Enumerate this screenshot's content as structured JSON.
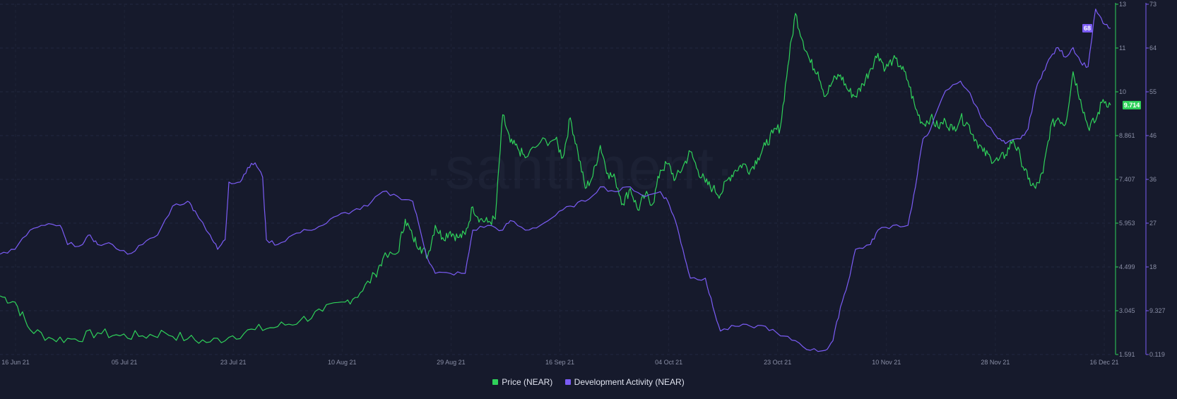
{
  "watermark": "·santiment·",
  "chart_data": {
    "type": "line",
    "x_labels": [
      "16 Jun 21",
      "05 Jul 21",
      "23 Jul 21",
      "10 Aug 21",
      "29 Aug 21",
      "16 Sep 21",
      "04 Oct 21",
      "23 Oct 21",
      "10 Nov 21",
      "28 Nov 21",
      "16 Dec 21"
    ],
    "x_range": [
      "2021-06-16",
      "2021-12-16"
    ],
    "y_left": {
      "ticks": [],
      "range": [
        0,
        1
      ]
    },
    "y_right_price": {
      "ticks": [
        "13",
        "11",
        "10",
        "8.861",
        "7.407",
        "5.953",
        "4.499",
        "3.045",
        "1.591"
      ],
      "range": [
        1.591,
        13
      ]
    },
    "y_right_activity": {
      "ticks": [
        "73",
        "64",
        "55",
        "46",
        "36",
        "27",
        "18",
        "9.327",
        "0.119"
      ],
      "range": [
        0.119,
        73
      ]
    },
    "series": [
      {
        "name": "Price (NEAR)",
        "color": "#2fd25a",
        "axis": "price",
        "last_value": "9.714",
        "points": [
          [
            0,
            3.5
          ],
          [
            2,
            3.3
          ],
          [
            4,
            2.4
          ],
          [
            7,
            2.1
          ],
          [
            10,
            2.1
          ],
          [
            13,
            2.3
          ],
          [
            16,
            2.2
          ],
          [
            19,
            2.2
          ],
          [
            22,
            2.3
          ],
          [
            25,
            2.1
          ],
          [
            28,
            2.0
          ],
          [
            31,
            2.2
          ],
          [
            34,
            2.4
          ],
          [
            37,
            2.5
          ],
          [
            40,
            2.7
          ],
          [
            43,
            3.0
          ],
          [
            46,
            3.3
          ],
          [
            48,
            3.6
          ],
          [
            50,
            4.2
          ],
          [
            51,
            4.7
          ],
          [
            53,
            4.9
          ],
          [
            54,
            6.0
          ],
          [
            55,
            5.4
          ],
          [
            56,
            5.1
          ],
          [
            57,
            4.8
          ],
          [
            58,
            5.8
          ],
          [
            59,
            5.4
          ],
          [
            60,
            5.6
          ],
          [
            61,
            5.4
          ],
          [
            62,
            5.5
          ],
          [
            63,
            6.4
          ],
          [
            64,
            6.0
          ],
          [
            65,
            5.9
          ],
          [
            66,
            6.0
          ],
          [
            67,
            9.4
          ],
          [
            68,
            8.5
          ],
          [
            69,
            8.3
          ],
          [
            70,
            8.0
          ],
          [
            72,
            8.5
          ],
          [
            74,
            8.6
          ],
          [
            75,
            8.0
          ],
          [
            76,
            9.3
          ],
          [
            77,
            8.2
          ],
          [
            78,
            7.0
          ],
          [
            79,
            7.4
          ],
          [
            80,
            8.4
          ],
          [
            81,
            7.5
          ],
          [
            82,
            7.3
          ],
          [
            83,
            6.5
          ],
          [
            84,
            7.0
          ],
          [
            85,
            6.3
          ],
          [
            86,
            6.8
          ],
          [
            87,
            6.5
          ],
          [
            88,
            7.6
          ],
          [
            89,
            7.8
          ],
          [
            90,
            7.3
          ],
          [
            91,
            7.7
          ],
          [
            92,
            8.2
          ],
          [
            93,
            7.6
          ],
          [
            94,
            7.2
          ],
          [
            95,
            7.0
          ],
          [
            96,
            6.8
          ],
          [
            97,
            7.3
          ],
          [
            98,
            7.6
          ],
          [
            99,
            7.8
          ],
          [
            100,
            7.6
          ],
          [
            101,
            8.0
          ],
          [
            102,
            8.4
          ],
          [
            103,
            8.8
          ],
          [
            104,
            9.0
          ],
          [
            105,
            11.0
          ],
          [
            106,
            12.7
          ],
          [
            107,
            11.8
          ],
          [
            108,
            11.1
          ],
          [
            109,
            10.8
          ],
          [
            110,
            10.0
          ],
          [
            111,
            10.5
          ],
          [
            112,
            10.7
          ],
          [
            113,
            10.2
          ],
          [
            114,
            10.0
          ],
          [
            115,
            10.4
          ],
          [
            116,
            10.9
          ],
          [
            117,
            11.4
          ],
          [
            118,
            10.9
          ],
          [
            119,
            11.2
          ],
          [
            120,
            11.0
          ],
          [
            121,
            10.5
          ],
          [
            122,
            9.6
          ],
          [
            123,
            9.1
          ],
          [
            124,
            9.3
          ],
          [
            125,
            9.0
          ],
          [
            126,
            9.2
          ],
          [
            127,
            8.9
          ],
          [
            128,
            9.3
          ],
          [
            129,
            9.1
          ],
          [
            130,
            8.6
          ],
          [
            131,
            8.2
          ],
          [
            132,
            8.0
          ],
          [
            133,
            7.9
          ],
          [
            134,
            8.1
          ],
          [
            135,
            8.6
          ],
          [
            136,
            8.0
          ],
          [
            137,
            7.3
          ],
          [
            138,
            7.0
          ],
          [
            139,
            7.5
          ],
          [
            140,
            9.0
          ],
          [
            141,
            9.3
          ],
          [
            142,
            9.1
          ],
          [
            143,
            10.8
          ],
          [
            144,
            9.9
          ],
          [
            145,
            9.0
          ],
          [
            146,
            9.2
          ],
          [
            147,
            9.9
          ],
          [
            148,
            9.714
          ]
        ]
      },
      {
        "name": "Development Activity (NEAR)",
        "color": "#7b5cf5",
        "axis": "activity",
        "last_value": "68",
        "points": [
          [
            0,
            21
          ],
          [
            2,
            22
          ],
          [
            4,
            26
          ],
          [
            6,
            27
          ],
          [
            8,
            27
          ],
          [
            9,
            23
          ],
          [
            11,
            23
          ],
          [
            12,
            25
          ],
          [
            13,
            23
          ],
          [
            15,
            23
          ],
          [
            17,
            21
          ],
          [
            19,
            23
          ],
          [
            21,
            25
          ],
          [
            23,
            31
          ],
          [
            25,
            32
          ],
          [
            26,
            30
          ],
          [
            28,
            25
          ],
          [
            29,
            22
          ],
          [
            30,
            24
          ],
          [
            30.5,
            36
          ],
          [
            32,
            36
          ],
          [
            33,
            39
          ],
          [
            34,
            40
          ],
          [
            35,
            37
          ],
          [
            35.5,
            24
          ],
          [
            37,
            23
          ],
          [
            39,
            25
          ],
          [
            41,
            26
          ],
          [
            43,
            27
          ],
          [
            45,
            29
          ],
          [
            47,
            30
          ],
          [
            49,
            31
          ],
          [
            51,
            34
          ],
          [
            53,
            33
          ],
          [
            55,
            32
          ],
          [
            56,
            26
          ],
          [
            57,
            20
          ],
          [
            58,
            17
          ],
          [
            60,
            17
          ],
          [
            62,
            17
          ],
          [
            63,
            26
          ],
          [
            65,
            27
          ],
          [
            67,
            26
          ],
          [
            68,
            28
          ],
          [
            70,
            26
          ],
          [
            72,
            27
          ],
          [
            74,
            29
          ],
          [
            76,
            31
          ],
          [
            78,
            32
          ],
          [
            80,
            35
          ],
          [
            82,
            34
          ],
          [
            84,
            35
          ],
          [
            86,
            33
          ],
          [
            88,
            34
          ],
          [
            89,
            32
          ],
          [
            90,
            28
          ],
          [
            91,
            22
          ],
          [
            92,
            16
          ],
          [
            94,
            16
          ],
          [
            95,
            10
          ],
          [
            96,
            5
          ],
          [
            98,
            6
          ],
          [
            100,
            6
          ],
          [
            102,
            6
          ],
          [
            104,
            4
          ],
          [
            106,
            3
          ],
          [
            108,
            1
          ],
          [
            110,
            1
          ],
          [
            111,
            3
          ],
          [
            112,
            10
          ],
          [
            113,
            15
          ],
          [
            114,
            22
          ],
          [
            116,
            23
          ],
          [
            117,
            26
          ],
          [
            119,
            27
          ],
          [
            121,
            27
          ],
          [
            122,
            35
          ],
          [
            123,
            45
          ],
          [
            124,
            47
          ],
          [
            126,
            55
          ],
          [
            128,
            57
          ],
          [
            129,
            55
          ],
          [
            130,
            52
          ],
          [
            131,
            49
          ],
          [
            133,
            45
          ],
          [
            134,
            44
          ],
          [
            136,
            45
          ],
          [
            137,
            47
          ],
          [
            138,
            55
          ],
          [
            139,
            59
          ],
          [
            140,
            62
          ],
          [
            141,
            64
          ],
          [
            142,
            62
          ],
          [
            143,
            64
          ],
          [
            144,
            61
          ],
          [
            145,
            60
          ],
          [
            146,
            72
          ],
          [
            147,
            69
          ],
          [
            148,
            68
          ]
        ]
      }
    ],
    "legend": [
      "Price (NEAR)",
      "Development Activity (NEAR)"
    ],
    "legend_position": "bottom-center",
    "grid": true
  }
}
